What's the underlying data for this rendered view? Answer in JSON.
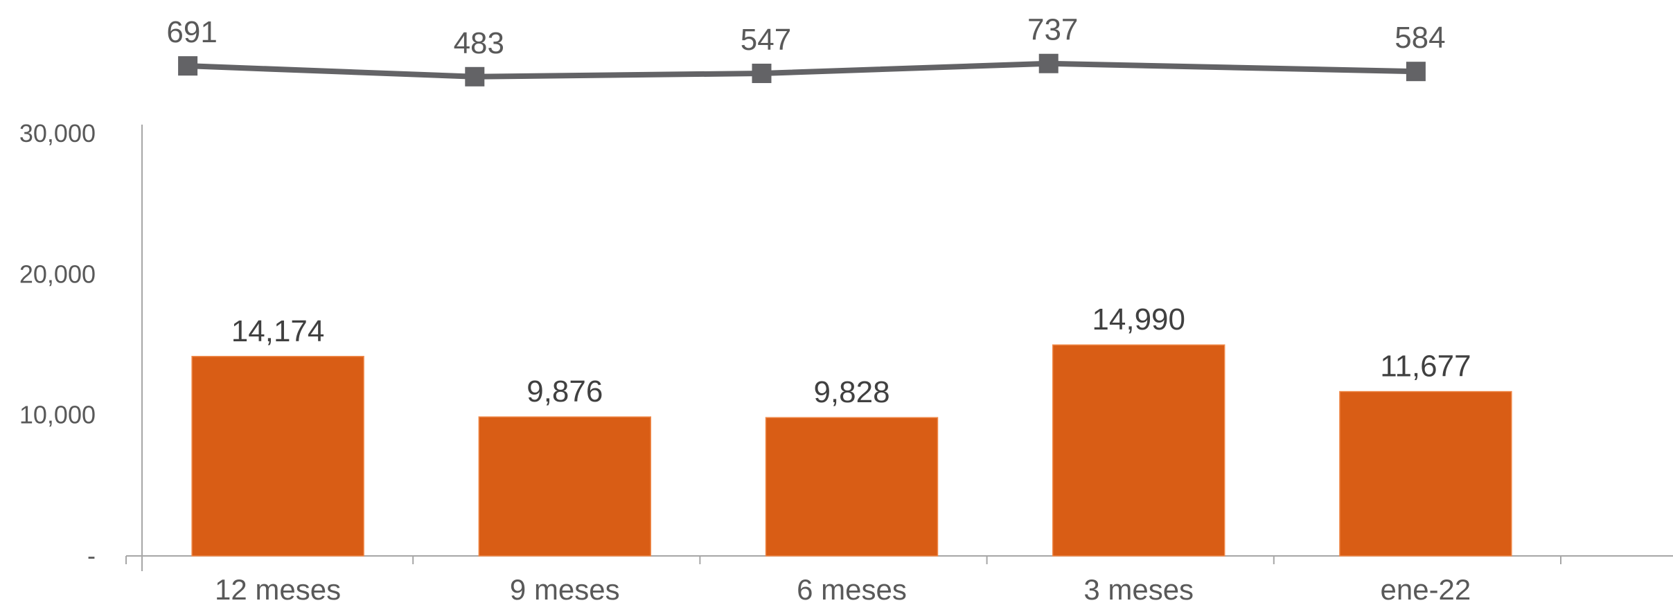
{
  "chart_data": {
    "type": "bar",
    "categories": [
      "12 meses",
      "9 meses",
      "6 meses",
      "3 meses",
      "ene-22"
    ],
    "series": [
      {
        "type": "bar",
        "values": [
          14174,
          9876,
          9828,
          14990,
          11677
        ],
        "labels": [
          "14,174",
          "9,876",
          "9,828",
          "14,990",
          "11,677"
        ]
      },
      {
        "type": "line",
        "values": [
          691,
          483,
          547,
          737,
          584
        ],
        "labels": [
          "691",
          "483",
          "547",
          "737",
          "584"
        ],
        "marker": "square"
      }
    ],
    "y_ticks": [
      "30,000",
      "20,000",
      "10,000",
      "-"
    ],
    "ylim": [
      0,
      30000
    ],
    "title": "",
    "xlabel": "",
    "ylabel": "",
    "grid": false,
    "legend": "none",
    "colors": {
      "bar": "#D95D15",
      "line": "#636366",
      "axis": "#A6A6A6"
    }
  }
}
